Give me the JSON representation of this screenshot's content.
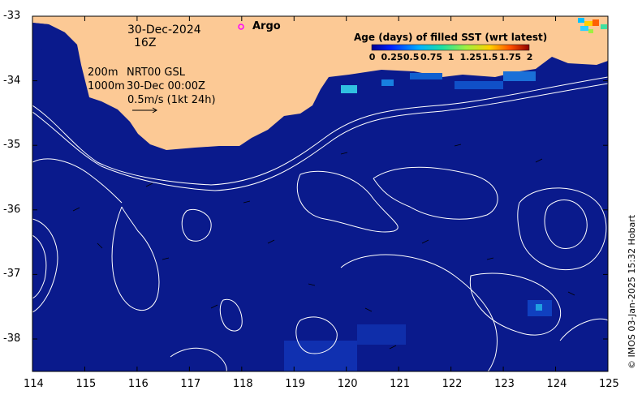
{
  "map": {
    "date": "30-Dec-2024",
    "hour": "16Z",
    "legend_argo": "Argo",
    "depth_200": "200m",
    "depth_1000": "1000m",
    "product": "NRT00 GSL",
    "product_time": "30-Dec 00:00Z",
    "vector_scale": "0.5m/s (1kt 24h)",
    "colorbar_title": "Age (days) of filled SST (wrt latest)",
    "colorbar_ticks": [
      "0",
      "0.25",
      "0.5",
      "0.75",
      "1",
      "1.25",
      "1.5",
      "1.75",
      "2"
    ],
    "credit": "© IMOS 03-Jan-2025 15:32 Hobart",
    "x_ticks": [
      "114",
      "115",
      "116",
      "117",
      "118",
      "119",
      "120",
      "121",
      "122",
      "123",
      "124",
      "125"
    ],
    "y_ticks": [
      "-33",
      "-34",
      "-35",
      "-36",
      "-37",
      "-38"
    ],
    "colors": {
      "ocean": "#0a1a8c",
      "land": "#fcc995",
      "argo": "#ff00ff"
    }
  }
}
